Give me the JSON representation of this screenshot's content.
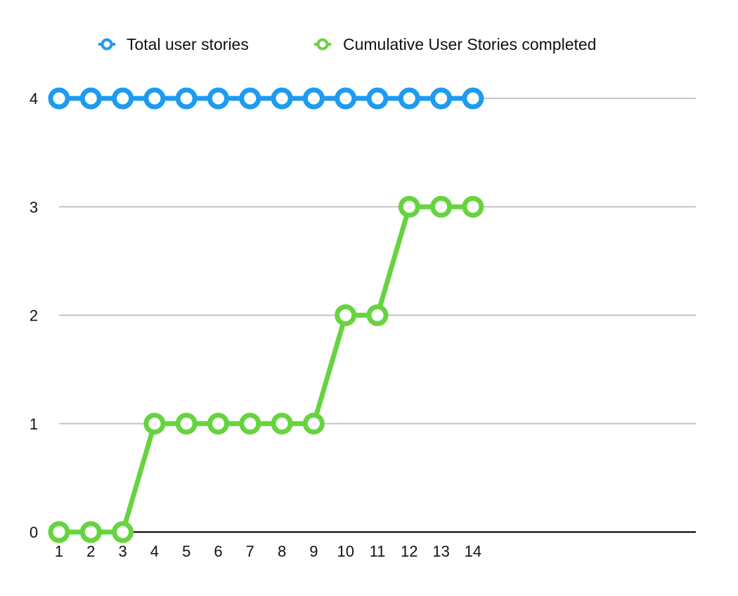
{
  "chart_data": {
    "type": "line",
    "x": [
      1,
      2,
      3,
      4,
      5,
      6,
      7,
      8,
      9,
      10,
      11,
      12,
      13,
      14
    ],
    "x_tick_labels": [
      "1",
      "2",
      "3",
      "4",
      "5",
      "6",
      "7",
      "8",
      "9",
      "10",
      "11",
      "12",
      "13",
      "14"
    ],
    "y_tick_labels": [
      "0",
      "1",
      "2",
      "3",
      "4"
    ],
    "ylim": [
      0,
      4
    ],
    "grid": true,
    "legend_position": "top",
    "title": "",
    "xlabel": "",
    "ylabel": "",
    "series": [
      {
        "name": "Total user stories",
        "color": "#1E9BF0",
        "values": [
          4,
          4,
          4,
          4,
          4,
          4,
          4,
          4,
          4,
          4,
          4,
          4,
          4,
          4
        ]
      },
      {
        "name": "Cumulative User Stories completed",
        "color": "#66D43F",
        "values": [
          0,
          0,
          0,
          1,
          1,
          1,
          1,
          1,
          1,
          2,
          2,
          3,
          3,
          3
        ]
      }
    ]
  }
}
